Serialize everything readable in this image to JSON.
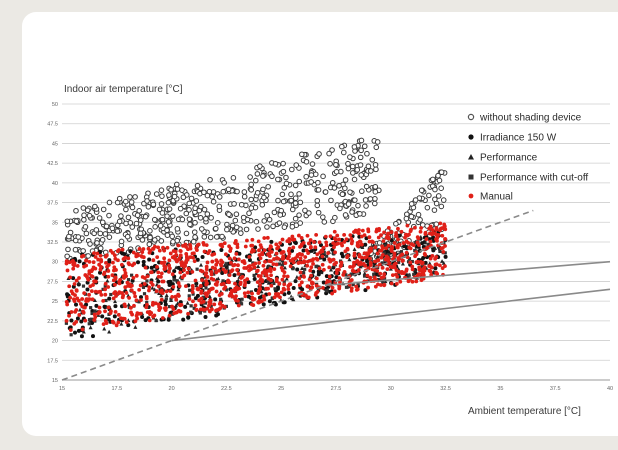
{
  "chart_data": {
    "type": "scatter",
    "title": "",
    "xlabel": "Ambient temperature [°C]",
    "ylabel": "Indoor air temperature [°C]",
    "xlim": [
      15,
      40
    ],
    "ylim": [
      15,
      50
    ],
    "xticks": [
      "15",
      "17.5",
      "20",
      "22.5",
      "25",
      "27.5",
      "30",
      "32.5",
      "35",
      "37.5",
      "40"
    ],
    "yticks": [
      "15",
      "17.5",
      "20",
      "22.5",
      "25",
      "27.5",
      "30",
      "32.5",
      "35",
      "37.5",
      "40",
      "42.5",
      "45",
      "47.5",
      "50"
    ],
    "grid": "horizontal",
    "legend_position": "top-right",
    "colors": {
      "without_shading": "#8c8c8c",
      "irradiance": "#111111",
      "performance": "#222222",
      "performance_cutoff": "#333333",
      "manual": "#e02018",
      "reference_lines": "#8a8a8a"
    },
    "series": [
      {
        "name": "without shading device",
        "marker": "open-circle",
        "clouds": [
          {
            "x": [
              15.2,
              29.5
            ],
            "y_low": [
              30.0,
              36.0
            ],
            "y_high": [
              36.5,
              46.0
            ],
            "n": 520
          },
          {
            "x": [
              29.0,
              32.5
            ],
            "y_low": [
              29.5,
              32.5
            ],
            "y_high": [
              31.5,
              42.5
            ],
            "n": 110
          }
        ]
      },
      {
        "name": "Irradiance 150 W",
        "marker": "filled-circle",
        "clouds": [
          {
            "x": [
              15.2,
              32.5
            ],
            "y_low": [
              20.0,
              28.0
            ],
            "y_high": [
              31.0,
              34.0
            ],
            "n": 420
          }
        ]
      },
      {
        "name": "Performance",
        "marker": "triangle",
        "clouds": [
          {
            "x": [
              15.2,
              32.5
            ],
            "y_low": [
              20.0,
              28.5
            ],
            "y_high": [
              28.0,
              33.5
            ],
            "n": 160
          }
        ]
      },
      {
        "name": "Performance with cut-off",
        "marker": "filled-square",
        "clouds": [
          {
            "x": [
              15.2,
              32.5
            ],
            "y_low": [
              20.5,
              28.5
            ],
            "y_high": [
              27.5,
              33.0
            ],
            "n": 160
          }
        ]
      },
      {
        "name": "Manual",
        "marker": "filled-circle",
        "clouds": [
          {
            "x": [
              15.2,
              32.5
            ],
            "y_low": [
              21.0,
              28.0
            ],
            "y_high": [
              31.0,
              35.0
            ],
            "n": 1100
          }
        ]
      }
    ],
    "reference_lines": [
      {
        "style": "dashed",
        "points": [
          [
            15,
            15
          ],
          [
            36.5,
            36.5
          ]
        ]
      },
      {
        "style": "solid",
        "points": [
          [
            20,
            20
          ],
          [
            40,
            26.5
          ]
        ]
      },
      {
        "style": "solid",
        "points": [
          [
            27,
            27
          ],
          [
            40,
            30
          ]
        ]
      }
    ]
  }
}
